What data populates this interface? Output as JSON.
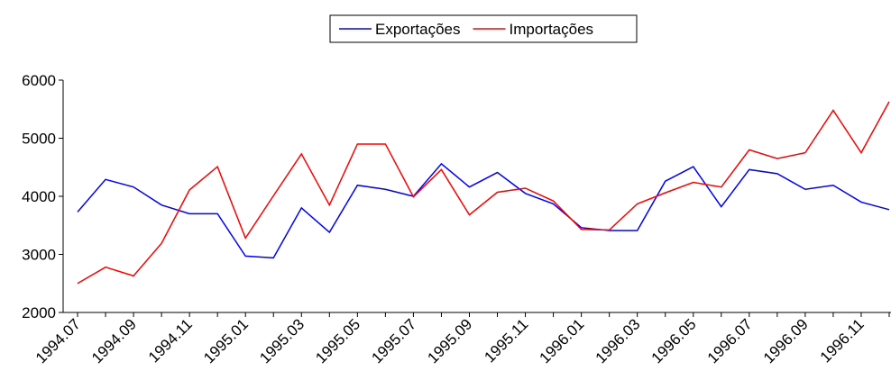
{
  "chart_data": {
    "type": "line",
    "categories": [
      "1994.07",
      null,
      "1994.09",
      null,
      "1994.11",
      null,
      "1995.01",
      null,
      "1995.03",
      null,
      "1995.05",
      null,
      "1995.07",
      null,
      "1995.09",
      null,
      "1995.11",
      null,
      "1996.01",
      null,
      "1996.03",
      null,
      "1996.05",
      null,
      "1996.07",
      null,
      "1996.09",
      null,
      "1996.11",
      null
    ],
    "series": [
      {
        "name": "Exportações",
        "color": "#0000ff",
        "values": [
          3730,
          4290,
          4160,
          3850,
          3700,
          3700,
          2970,
          2940,
          3800,
          3380,
          4190,
          4120,
          4000,
          4560,
          4160,
          4410,
          4050,
          3870,
          3460,
          3410,
          3410,
          4260,
          4510,
          3820,
          4460,
          4390,
          4120,
          4190,
          3900,
          3770
        ]
      },
      {
        "name": "Importações",
        "color": "#ff0000",
        "values": [
          2500,
          2780,
          2630,
          3190,
          4110,
          4510,
          3280,
          4010,
          4730,
          3850,
          4900,
          4900,
          3990,
          4460,
          3680,
          4070,
          4140,
          3920,
          3430,
          3420,
          3870,
          4060,
          4240,
          4160,
          4800,
          4650,
          4750,
          5480,
          4750,
          5630
        ]
      }
    ],
    "ylim": [
      2000,
      6000
    ],
    "yticks": [
      2000,
      3000,
      4000,
      5000,
      6000
    ],
    "legend": "top"
  }
}
